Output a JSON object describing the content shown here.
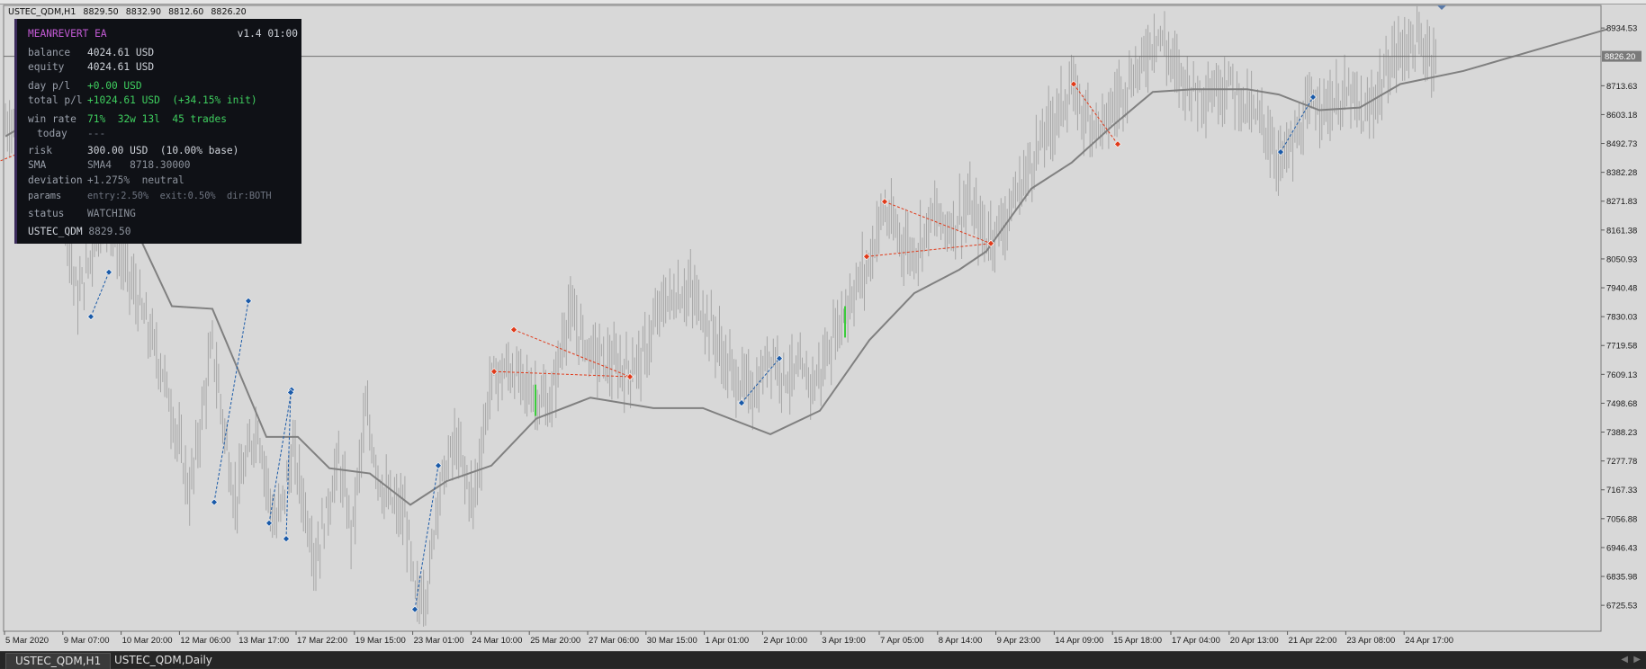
{
  "window": {
    "symbol": "USTEC_QDM,H1",
    "open": "8829.50",
    "high": "8832.90",
    "low": "8812.60",
    "close": "8826.20"
  },
  "ea_panel": {
    "title": "MEANREVERT EA",
    "version": "v1.4",
    "clock": "01:00",
    "balance_label": "balance",
    "balance_value": "4024.61 USD",
    "equity_label": "equity",
    "equity_value": "4024.61 USD",
    "day_pl_label": "day p/l",
    "day_pl_value": "+0.00 USD",
    "total_pl_label": "total p/l",
    "total_pl_value": "+1024.61 USD",
    "total_pl_pct": "(+34.15% init)",
    "winrate_label": "win rate",
    "winrate_pct": "71%",
    "winrate_split": "32w 13l",
    "winrate_trades": "45 trades",
    "today_label": "today",
    "today_value": "---",
    "risk_label": "risk",
    "risk_value": "300.00 USD",
    "risk_pct": "(10.00% base)",
    "sma_label": "SMA",
    "sma_name": "SMA4",
    "sma_value": "8718.30000",
    "deviation_label": "deviation",
    "deviation_value": "+1.275%",
    "deviation_state": "neutral",
    "params_label": "params",
    "params_entry": "entry:2.50%",
    "params_exit": "exit:0.50%",
    "params_dir": "dir:BOTH",
    "status_label": "status",
    "status_value": "WATCHING",
    "footer_symbol": "USTEC_QDM",
    "footer_price": "8829.50"
  },
  "chart_data": {
    "type": "bar",
    "symbol": "USTEC_QDM",
    "timeframe": "H1",
    "ylim": [
      6640,
      8990
    ],
    "price_labels": [
      "8934.53",
      "8826.20",
      "8713.63",
      "8603.18",
      "8492.73",
      "8382.28",
      "8271.83",
      "8161.38",
      "8050.93",
      "7940.48",
      "7830.03",
      "7719.58",
      "7609.13",
      "7498.68",
      "7388.23",
      "7277.78",
      "7167.33",
      "7056.88",
      "6946.43",
      "6835.98",
      "6725.53"
    ],
    "current_price": 8826.2,
    "time_labels": [
      "5 Mar 2020",
      "9 Mar 07:00",
      "10 Mar 20:00",
      "12 Mar 06:00",
      "13 Mar 17:00",
      "17 Mar 22:00",
      "19 Mar 15:00",
      "23 Mar 01:00",
      "24 Mar 10:00",
      "25 Mar 20:00",
      "27 Mar 06:00",
      "30 Mar 15:00",
      "1 Apr 01:00",
      "2 Apr 10:00",
      "3 Apr 19:00",
      "7 Apr 05:00",
      "8 Apr 14:00",
      "9 Apr 23:00",
      "14 Apr 09:00",
      "15 Apr 18:00",
      "17 Apr 04:00",
      "20 Apr 13:00",
      "21 Apr 22:00",
      "23 Apr 08:00",
      "24 Apr 17:00"
    ],
    "price_path": [
      [
        0,
        8560
      ],
      [
        25,
        8620
      ],
      [
        55,
        8500
      ],
      [
        80,
        7890
      ],
      [
        110,
        8240
      ],
      [
        140,
        7960
      ],
      [
        175,
        7620
      ],
      [
        205,
        7150
      ],
      [
        230,
        7720
      ],
      [
        255,
        7120
      ],
      [
        280,
        7420
      ],
      [
        300,
        7010
      ],
      [
        320,
        7310
      ],
      [
        345,
        6900
      ],
      [
        370,
        7280
      ],
      [
        385,
        7000
      ],
      [
        400,
        7460
      ],
      [
        420,
        7150
      ],
      [
        445,
        7060
      ],
      [
        456,
        6740
      ],
      [
        470,
        6800
      ],
      [
        480,
        7150
      ],
      [
        500,
        7350
      ],
      [
        520,
        7120
      ],
      [
        540,
        7590
      ],
      [
        560,
        7630
      ],
      [
        580,
        7560
      ],
      [
        605,
        7480
      ],
      [
        625,
        7840
      ],
      [
        650,
        7700
      ],
      [
        675,
        7640
      ],
      [
        690,
        7620
      ],
      [
        710,
        7680
      ],
      [
        730,
        7880
      ],
      [
        760,
        7930
      ],
      [
        785,
        7790
      ],
      [
        800,
        7650
      ],
      [
        815,
        7580
      ],
      [
        835,
        7540
      ],
      [
        850,
        7700
      ],
      [
        865,
        7610
      ],
      [
        880,
        7610
      ],
      [
        900,
        7580
      ],
      [
        915,
        7700
      ],
      [
        930,
        7840
      ],
      [
        960,
        8040
      ],
      [
        975,
        8240
      ],
      [
        990,
        8150
      ],
      [
        1010,
        8070
      ],
      [
        1030,
        8220
      ],
      [
        1050,
        8170
      ],
      [
        1070,
        8260
      ],
      [
        1090,
        8130
      ],
      [
        1110,
        8190
      ],
      [
        1140,
        8420
      ],
      [
        1160,
        8560
      ],
      [
        1185,
        8700
      ],
      [
        1200,
        8600
      ],
      [
        1220,
        8560
      ],
      [
        1240,
        8690
      ],
      [
        1260,
        8780
      ],
      [
        1280,
        8920
      ],
      [
        1300,
        8780
      ],
      [
        1320,
        8700
      ],
      [
        1340,
        8690
      ],
      [
        1360,
        8730
      ],
      [
        1380,
        8630
      ],
      [
        1400,
        8560
      ],
      [
        1415,
        8420
      ],
      [
        1435,
        8510
      ],
      [
        1455,
        8660
      ],
      [
        1475,
        8640
      ],
      [
        1495,
        8680
      ],
      [
        1510,
        8580
      ],
      [
        1525,
        8690
      ],
      [
        1545,
        8830
      ],
      [
        1560,
        8880
      ],
      [
        1575,
        8860
      ],
      [
        1590,
        8826
      ]
    ],
    "sma_path": [
      [
        0,
        8520
      ],
      [
        20,
        8560
      ],
      [
        80,
        8400
      ],
      [
        140,
        8200
      ],
      [
        185,
        7870
      ],
      [
        230,
        7860
      ],
      [
        290,
        7370
      ],
      [
        325,
        7370
      ],
      [
        360,
        7250
      ],
      [
        405,
        7230
      ],
      [
        450,
        7110
      ],
      [
        490,
        7200
      ],
      [
        540,
        7260
      ],
      [
        590,
        7440
      ],
      [
        650,
        7520
      ],
      [
        720,
        7480
      ],
      [
        775,
        7480
      ],
      [
        850,
        7380
      ],
      [
        905,
        7470
      ],
      [
        960,
        7740
      ],
      [
        1010,
        7920
      ],
      [
        1060,
        8010
      ],
      [
        1090,
        8080
      ],
      [
        1140,
        8320
      ],
      [
        1185,
        8420
      ],
      [
        1230,
        8560
      ],
      [
        1275,
        8690
      ],
      [
        1320,
        8700
      ],
      [
        1380,
        8700
      ],
      [
        1415,
        8680
      ],
      [
        1460,
        8620
      ],
      [
        1505,
        8630
      ],
      [
        1550,
        8720
      ],
      [
        1620,
        8770
      ],
      [
        1780,
        8930
      ]
    ],
    "trades": [
      {
        "kind": "sell",
        "p1": [
          -10,
          8420
        ],
        "p2": [
          40,
          8490
        ]
      },
      {
        "kind": "buy",
        "p1": [
          95,
          7830
        ],
        "p2": [
          115,
          8000
        ]
      },
      {
        "kind": "buy",
        "p1": [
          232,
          7120
        ],
        "p2": [
          270,
          7890
        ]
      },
      {
        "kind": "buy",
        "p1": [
          293,
          7040
        ],
        "p2": [
          318,
          7550
        ]
      },
      {
        "kind": "buy",
        "p1": [
          312,
          6980
        ],
        "p2": [
          317,
          7540
        ]
      },
      {
        "kind": "buy",
        "p1": [
          455,
          6710
        ],
        "p2": [
          481,
          7260
        ]
      },
      {
        "kind": "sell",
        "p1": [
          543,
          7620
        ],
        "p2": [
          694,
          7600
        ]
      },
      {
        "kind": "sell",
        "p1": [
          565,
          7780
        ],
        "p2": [
          694,
          7600
        ]
      },
      {
        "kind": "buy",
        "p1": [
          818,
          7500
        ],
        "p2": [
          860,
          7670
        ]
      },
      {
        "kind": "sell",
        "p1": [
          957,
          8060
        ],
        "p2": [
          1095,
          8110
        ]
      },
      {
        "kind": "sell",
        "p1": [
          977,
          8270
        ],
        "p2": [
          1095,
          8110
        ]
      },
      {
        "kind": "sell",
        "p1": [
          1187,
          8720
        ],
        "p2": [
          1236,
          8490
        ]
      },
      {
        "kind": "buy",
        "p1": [
          1417,
          8460
        ],
        "p2": [
          1453,
          8670
        ]
      }
    ],
    "green_ticks": [
      [
        589,
        7510
      ],
      [
        933,
        7810
      ]
    ]
  },
  "tabs": [
    "USTEC_QDM,H1",
    "USTEC_QDM,Daily"
  ],
  "colors": {
    "background": "#d8d8d8",
    "bars": "#a6a6a6",
    "sma": "#808080",
    "sell_marker": "#e03a1a",
    "buy_marker": "#1a5aa8",
    "panel_bg": "#0f1116"
  }
}
